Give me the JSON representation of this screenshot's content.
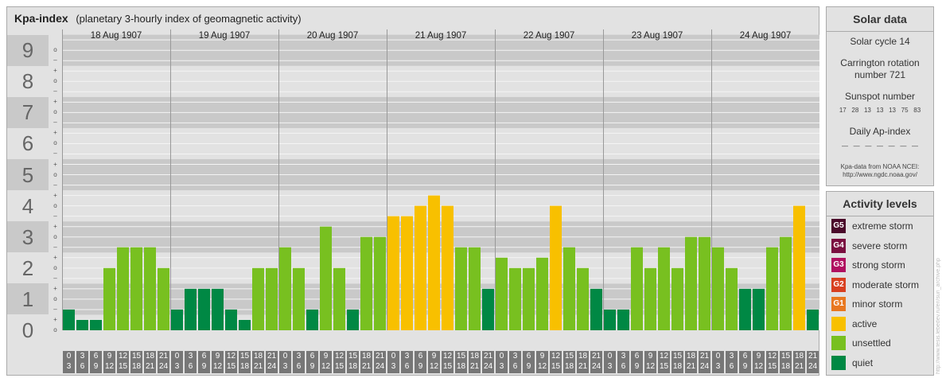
{
  "header": {
    "title": "Kpa-index",
    "subtitle": "(planetary 3-hourly index of geomagnetic activity)"
  },
  "axis": {
    "levels": [
      "0",
      "1",
      "2",
      "3",
      "4",
      "5",
      "6",
      "7",
      "8",
      "9"
    ],
    "sub_marks": [
      "o",
      "+",
      "–"
    ]
  },
  "chart_data": {
    "type": "bar",
    "title": "Kpa-index",
    "subtitle": "(planetary 3-hourly index of geomagnetic activity)",
    "ylim": [
      0,
      9.67
    ],
    "days": [
      "18 Aug 1907",
      "19 Aug 1907",
      "20 Aug 1907",
      "21 Aug 1907",
      "22 Aug 1907",
      "23 Aug 1907",
      "24 Aug 1907"
    ],
    "interval_starts": [
      "0",
      "3",
      "6",
      "9",
      "12",
      "15",
      "18",
      "21"
    ],
    "interval_ends": [
      "3",
      "6",
      "9",
      "12",
      "15",
      "18",
      "21",
      "24"
    ],
    "values": [
      0.667,
      0.333,
      0.333,
      2,
      2.667,
      2.667,
      2.667,
      2,
      0.667,
      1.333,
      1.333,
      1.333,
      0.667,
      0.333,
      2,
      2,
      2.667,
      2,
      0.667,
      3.333,
      2,
      0.667,
      3,
      3,
      3.667,
      3.667,
      4,
      4.333,
      4,
      2.667,
      2.667,
      1.333,
      2.333,
      2,
      2,
      2.333,
      4,
      2.667,
      2,
      1.333,
      0.667,
      0.667,
      2.667,
      2,
      2.667,
      2,
      3,
      3,
      2.667,
      2,
      1.333,
      1.333,
      2.667,
      3,
      4,
      0.667
    ]
  },
  "solar": {
    "title": "Solar data",
    "cycle": "Solar cycle 14",
    "carrington_1": "Carrington rotation",
    "carrington_2": "number 721",
    "sunspot_title": "Sunspot number",
    "sunspot_values": "17   28   13   13   13   75   83",
    "ap_title": "Daily Ap-index",
    "ap_values": "—   —   —   —   —   —   —",
    "source_1": "Kpa-data from NOAA NCEI:",
    "source_2": "http://www.ngdc.noaa.gov/"
  },
  "activity": {
    "title": "Activity levels",
    "levels": [
      {
        "badge": "G5",
        "label": "extreme storm",
        "color": "#4a0a2a"
      },
      {
        "badge": "G4",
        "label": "severe storm",
        "color": "#7a1040"
      },
      {
        "badge": "G3",
        "label": "strong storm",
        "color": "#b01060"
      },
      {
        "badge": "G2",
        "label": "moderate storm",
        "color": "#d84020"
      },
      {
        "badge": "G1",
        "label": "minor storm",
        "color": "#e87820"
      },
      {
        "badge": "",
        "label": "active",
        "color": "#f8c000"
      },
      {
        "badge": "",
        "label": "unsettled",
        "color": "#78c020"
      },
      {
        "badge": "",
        "label": "quiet",
        "color": "#008844"
      }
    ]
  },
  "credit": "http://www.tesis.lebedev.ru/en/sun_archive.php"
}
